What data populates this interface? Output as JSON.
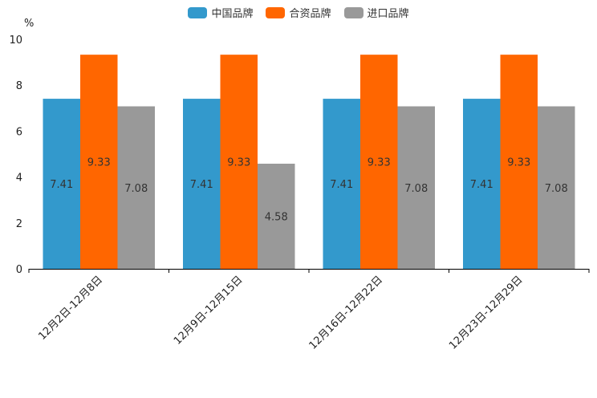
{
  "chart_data": {
    "type": "bar",
    "ylabel": "%",
    "ylim": [
      0,
      10
    ],
    "yticks": [
      "0",
      "2",
      "4",
      "6",
      "8",
      "10"
    ],
    "categories": [
      "12月2日-12月8日",
      "12月9日-12月15日",
      "12月16日-12月22日",
      "12月23日-12月29日"
    ],
    "series": [
      {
        "name": "中国品牌",
        "color": "#3399cc",
        "values": [
          7.41,
          7.41,
          7.41,
          7.41
        ],
        "labels": [
          "7.41",
          "7.41",
          "7.41",
          "7.41"
        ]
      },
      {
        "name": "合资品牌",
        "color": "#ff6600",
        "values": [
          9.33,
          9.33,
          9.33,
          9.33
        ],
        "labels": [
          "9.33",
          "9.33",
          "9.33",
          "9.33"
        ]
      },
      {
        "name": "进口品牌",
        "color": "#999999",
        "values": [
          7.08,
          4.58,
          7.08,
          7.08
        ],
        "labels": [
          "7.08",
          "4.58",
          "7.08",
          "7.08"
        ]
      }
    ],
    "legend_position": "top-center"
  }
}
